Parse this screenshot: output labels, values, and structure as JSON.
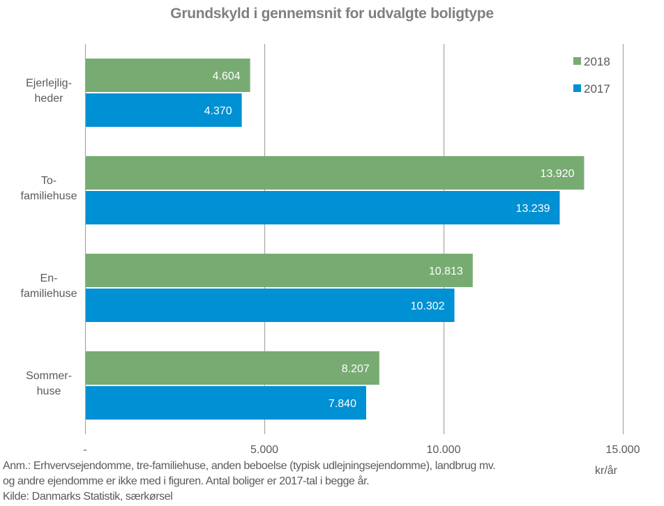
{
  "chart_data": {
    "type": "bar",
    "orientation": "horizontal",
    "title": "Grundskyld i gennemsnit for udvalgte boligtype",
    "categories": [
      [
        "Ejerlejlig-",
        "heder"
      ],
      [
        "To-",
        "familiehuse"
      ],
      [
        "En-",
        "familiehuse"
      ],
      [
        "Sommer-",
        "huse"
      ]
    ],
    "series": [
      {
        "name": "2018",
        "color": "#77ab72",
        "values": [
          4604,
          13920,
          10813,
          8207
        ],
        "labels": [
          "4.604",
          "13.920",
          "10.813",
          "8.207"
        ]
      },
      {
        "name": "2017",
        "color": "#0090d4",
        "values": [
          4370,
          13239,
          10302,
          7840
        ],
        "labels": [
          "4.370",
          "13.239",
          "10.302",
          "7.840"
        ]
      }
    ],
    "xlim": [
      0,
      15000
    ],
    "xticks": [
      0,
      5000,
      10000,
      15000
    ],
    "xtick_labels": [
      "-",
      "5.000",
      "10.000",
      "15.000"
    ],
    "xlabel": "kr/år",
    "ylabel": "",
    "grid": "vertical",
    "legend": "top-right",
    "data_labels": "inside-end"
  },
  "notes": [
    "Anm.: Erhvervsejendomme, tre-familiehuse, anden beboelse (typisk udlejningsejendomme), landbrug mv.",
    "og andre ejendomme er ikke med i figuren. Antal boliger er 2017-tal i begge år.",
    "Kilde: Danmarks Statistik, særkørsel"
  ]
}
